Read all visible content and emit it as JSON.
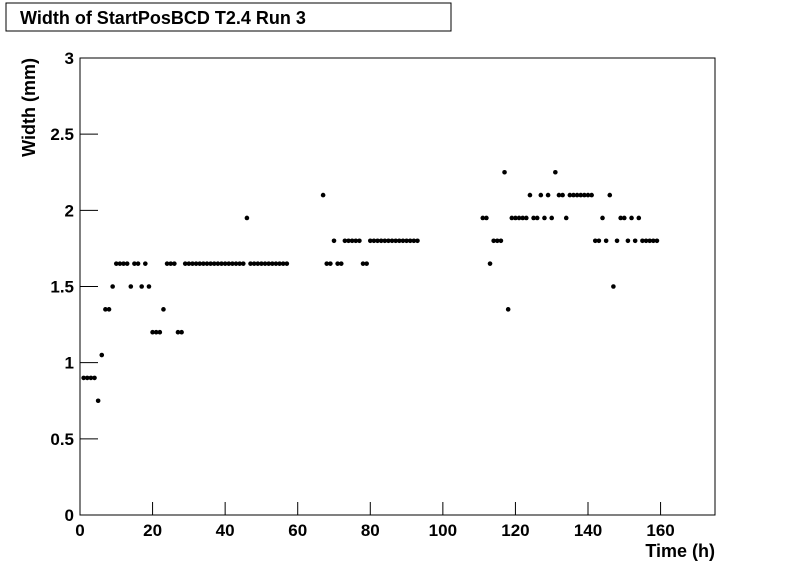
{
  "chart_data": {
    "type": "scatter",
    "title": "Width of StartPosBCD T2.4 Run 3",
    "x_label": "Time (h)",
    "y_label": "Width (mm)",
    "color": "#000000",
    "xlim": [
      0,
      175
    ],
    "ylim": [
      0,
      3
    ],
    "xticks": [
      0,
      20,
      40,
      60,
      80,
      100,
      120,
      140,
      160
    ],
    "yticks": [
      0,
      0.5,
      1,
      1.5,
      2,
      2.5,
      3
    ],
    "x": [
      1,
      2,
      3,
      4,
      5,
      6,
      7,
      8,
      9,
      10,
      11,
      12,
      13,
      14,
      15,
      16,
      17,
      18,
      19,
      20,
      21,
      22,
      23,
      24,
      25,
      26,
      27,
      28,
      29,
      30,
      31,
      32,
      33,
      34,
      35,
      36,
      37,
      38,
      39,
      40,
      41,
      42,
      43,
      44,
      45,
      46,
      47,
      48,
      49,
      50,
      51,
      52,
      53,
      54,
      55,
      56,
      57,
      67,
      68,
      69,
      70,
      71,
      72,
      73,
      74,
      75,
      76,
      77,
      78,
      79,
      80,
      81,
      82,
      83,
      84,
      85,
      86,
      87,
      88,
      89,
      90,
      91,
      92,
      93,
      111,
      112,
      113,
      114,
      115,
      116,
      117,
      118,
      119,
      120,
      121,
      122,
      123,
      124,
      125,
      126,
      127,
      128,
      129,
      130,
      131,
      132,
      133,
      134,
      135,
      136,
      137,
      138,
      139,
      140,
      141,
      142,
      143,
      144,
      145,
      146,
      147,
      148,
      149,
      150,
      151,
      152,
      153,
      154,
      155,
      156,
      157,
      158,
      159
    ],
    "values": [
      0.9,
      0.9,
      0.9,
      0.9,
      0.75,
      1.05,
      1.35,
      1.35,
      1.5,
      1.65,
      1.65,
      1.65,
      1.65,
      1.5,
      1.65,
      1.65,
      1.5,
      1.65,
      1.5,
      1.2,
      1.2,
      1.2,
      1.35,
      1.65,
      1.65,
      1.65,
      1.2,
      1.2,
      1.65,
      1.65,
      1.65,
      1.65,
      1.65,
      1.65,
      1.65,
      1.65,
      1.65,
      1.65,
      1.65,
      1.65,
      1.65,
      1.65,
      1.65,
      1.65,
      1.65,
      1.95,
      1.65,
      1.65,
      1.65,
      1.65,
      1.65,
      1.65,
      1.65,
      1.65,
      1.65,
      1.65,
      1.65,
      2.1,
      1.65,
      1.65,
      1.8,
      1.65,
      1.65,
      1.8,
      1.8,
      1.8,
      1.8,
      1.8,
      1.65,
      1.65,
      1.8,
      1.8,
      1.8,
      1.8,
      1.8,
      1.8,
      1.8,
      1.8,
      1.8,
      1.8,
      1.8,
      1.8,
      1.8,
      1.8,
      1.95,
      1.95,
      1.65,
      1.8,
      1.8,
      1.8,
      2.25,
      1.35,
      1.95,
      1.95,
      1.95,
      1.95,
      1.95,
      2.1,
      1.95,
      1.95,
      2.1,
      1.95,
      2.1,
      1.95,
      2.25,
      2.1,
      2.1,
      1.95,
      2.1,
      2.1,
      2.1,
      2.1,
      2.1,
      2.1,
      2.1,
      1.8,
      1.8,
      1.95,
      1.8,
      2.1,
      1.5,
      1.8,
      1.95,
      1.95,
      1.8,
      1.95,
      1.8,
      1.95,
      1.8,
      1.8,
      1.8,
      1.8,
      1.8
    ]
  }
}
